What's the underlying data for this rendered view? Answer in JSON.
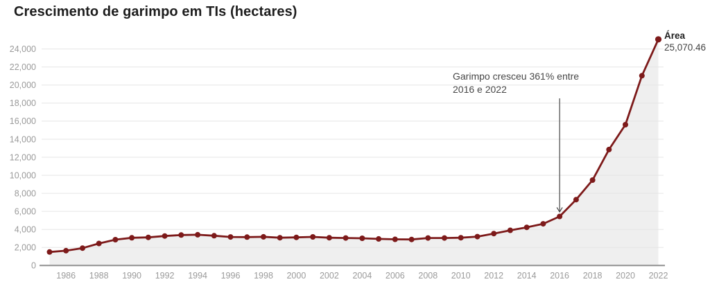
{
  "title": "Crescimento de garimpo em TIs (hectares)",
  "annotation": {
    "text_line1": "Garimpo cresceu 361% entre",
    "text_line2": "2016 e 2022",
    "arrow_year": 2016
  },
  "end_label": {
    "label": "Área",
    "value": "25,070.46"
  },
  "colors": {
    "line": "#7d1a1a",
    "area_fill": "#efefef",
    "gridline": "#e5e5e5",
    "axis_line": "#8f8f8f",
    "tick_label": "#9a9a9a",
    "title_text": "#1d1d1d",
    "annotation_text": "#474747",
    "arrow": "#474747"
  },
  "chart_data": {
    "type": "line",
    "title": "Crescimento de garimpo em TIs (hectares)",
    "xlabel": "",
    "ylabel": "hectares",
    "x": [
      1985,
      1986,
      1987,
      1988,
      1989,
      1990,
      1991,
      1992,
      1993,
      1994,
      1995,
      1996,
      1997,
      1998,
      1999,
      2000,
      2001,
      2002,
      2003,
      2004,
      2005,
      2006,
      2007,
      2008,
      2009,
      2010,
      2011,
      2012,
      2013,
      2014,
      2015,
      2016,
      2017,
      2018,
      2019,
      2020,
      2021,
      2022
    ],
    "series": [
      {
        "name": "Área de garimpo (hectares)",
        "values": [
          1500,
          1640,
          1930,
          2440,
          2860,
          3070,
          3120,
          3270,
          3380,
          3410,
          3300,
          3160,
          3150,
          3180,
          3080,
          3120,
          3170,
          3080,
          3050,
          3020,
          2950,
          2900,
          2890,
          3050,
          3050,
          3080,
          3200,
          3540,
          3900,
          4230,
          4620,
          5438,
          7300,
          9470,
          12850,
          15610,
          21040,
          25070.46
        ]
      }
    ],
    "ylim": [
      0,
      26000
    ],
    "y_ticks": [
      0,
      2000,
      4000,
      6000,
      8000,
      10000,
      12000,
      14000,
      16000,
      18000,
      20000,
      22000,
      24000
    ],
    "x_tick_years": [
      1986,
      1988,
      1990,
      1992,
      1994,
      1996,
      1998,
      2000,
      2002,
      2004,
      2006,
      2008,
      2010,
      2012,
      2014,
      2016,
      2018,
      2020,
      2022
    ],
    "grid": "horizontal",
    "legend": "none",
    "area_fill": true,
    "markers": true,
    "end_point_label": {
      "label": "Área",
      "value": 25070.46
    }
  }
}
